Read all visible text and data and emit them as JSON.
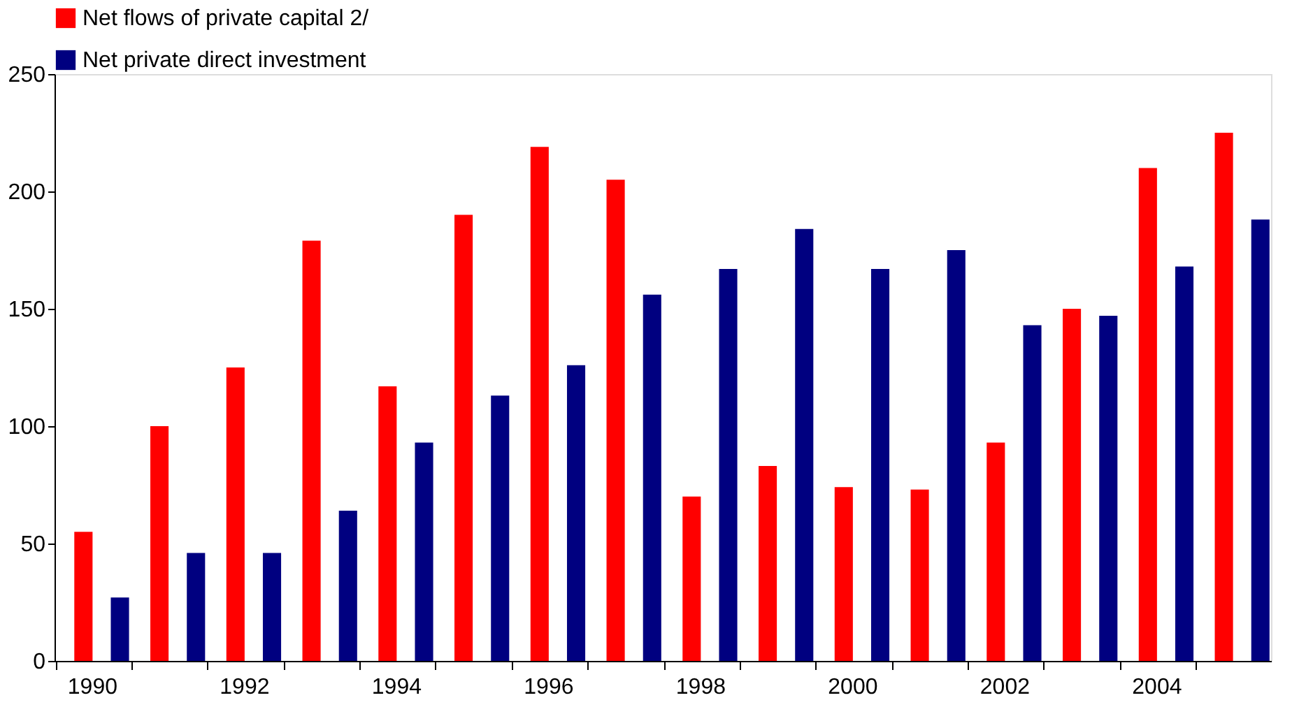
{
  "chart_data": {
    "type": "bar",
    "categories": [
      "1990",
      null,
      "1992",
      null,
      "1994",
      null,
      "1996",
      null,
      "1998",
      null,
      "2000",
      null,
      "2002",
      null,
      "2004",
      null
    ],
    "series": [
      {
        "name": "Net flows of private capital  2/",
        "color": "#ff0000",
        "values": [
          55,
          100,
          125,
          179,
          117,
          190,
          219,
          205,
          70,
          83,
          74,
          73,
          93,
          150,
          210,
          225
        ]
      },
      {
        "name": "Net private direct investment",
        "color": "#000080",
        "values": [
          27,
          46,
          46,
          64,
          93,
          113,
          126,
          156,
          167,
          184,
          167,
          175,
          143,
          147,
          168,
          188
        ]
      }
    ],
    "ylim": [
      0,
      250
    ],
    "yticks": [
      0,
      50,
      100,
      150,
      200,
      250
    ],
    "grid": false,
    "legend": "top"
  }
}
